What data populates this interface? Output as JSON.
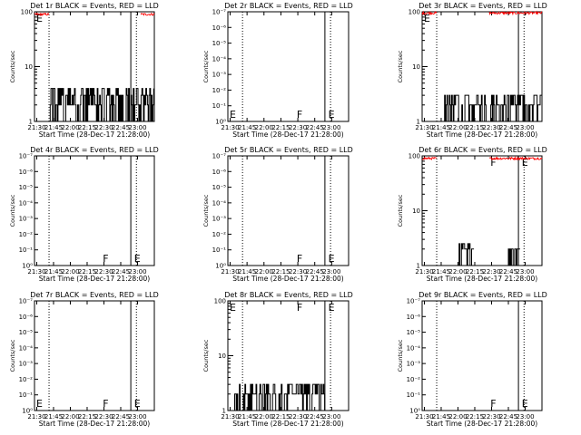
{
  "figure": {
    "xlabel": "Start Time (28-Dec-17 21:28:00)",
    "ylabel": "Counts/sec",
    "x_ticks": [
      "21:30",
      "21:45",
      "22:00",
      "22:15",
      "22:30",
      "22:45",
      "23:00"
    ],
    "x_tick_minutes": [
      2,
      17,
      32,
      47,
      62,
      77,
      92
    ],
    "x_range_minutes": [
      0,
      107
    ],
    "dotted_lines_minutes": [
      13,
      91
    ],
    "solid_line_minutes": 86,
    "flag_labels": {
      "F": 61,
      "E": 89
    }
  },
  "colors": {
    "events": "#000000",
    "lld": "#ff0000",
    "axis": "#000000"
  },
  "chart_data": [
    {
      "type": "line",
      "title": "Det 1r BLACK = Events, RED = LLD",
      "scale": "log",
      "ylim": [
        1,
        100
      ],
      "yticks": [
        "1",
        "10",
        "100"
      ],
      "ytick_values": [
        1,
        10,
        100
      ],
      "flags": [
        "E"
      ],
      "series": [
        {
          "name": "Events",
          "color": "#000000",
          "segments": [
            {
              "from": 14,
              "to": 107,
              "level_low": 1,
              "level_high": 4
            }
          ]
        },
        {
          "name": "LLD",
          "color": "#ff0000",
          "segments": [
            {
              "from": 0,
              "to": 13,
              "level": 90
            },
            {
              "from": 95,
              "to": 107,
              "level": 90
            }
          ]
        }
      ]
    },
    {
      "type": "line",
      "title": "Det 2r BLACK = Events, RED = LLD",
      "scale": "log",
      "ylim": [
        1,
        1.00000001
      ],
      "yticks": [
        "10⁰",
        "10⁻¹",
        "10⁻²",
        "10⁻³",
        "10⁻⁴",
        "10⁻⁵",
        "10⁻⁶",
        "10⁻⁷"
      ],
      "flags": [
        "E",
        "F",
        "E"
      ],
      "series": []
    },
    {
      "type": "line",
      "title": "Det 3r BLACK = Events, RED = LLD",
      "scale": "log",
      "ylim": [
        1,
        100
      ],
      "yticks": [
        "1",
        "10",
        "100"
      ],
      "ytick_values": [
        1,
        10,
        100
      ],
      "flags": [
        "E"
      ],
      "series": [
        {
          "name": "Events",
          "color": "#000000",
          "segments": [
            {
              "from": 20,
              "to": 107,
              "level_low": 1,
              "level_high": 3
            }
          ]
        },
        {
          "name": "LLD",
          "color": "#ff0000",
          "segments": [
            {
              "from": 0,
              "to": 13,
              "level": 95
            },
            {
              "from": 60,
              "to": 107,
              "level": 95
            }
          ]
        }
      ]
    },
    {
      "type": "line",
      "title": "Det 4r BLACK = Events, RED = LLD",
      "scale": "log",
      "ylim": [
        1,
        1.00000001
      ],
      "yticks": [
        "10⁰",
        "10⁻¹",
        "10⁻²",
        "10⁻³",
        "10⁻⁴",
        "10⁻⁵",
        "10⁻⁶",
        "10⁻⁷"
      ],
      "flags": [
        "F",
        "E"
      ],
      "series": []
    },
    {
      "type": "line",
      "title": "Det 5r BLACK = Events, RED = LLD",
      "scale": "log",
      "ylim": [
        1,
        1.00000001
      ],
      "yticks": [
        "10⁰",
        "10⁻¹",
        "10⁻²",
        "10⁻³",
        "10⁻⁴",
        "10⁻⁵",
        "10⁻⁶",
        "10⁻⁷"
      ],
      "flags": [
        "F",
        "E"
      ],
      "series": []
    },
    {
      "type": "line",
      "title": "Det 6r BLACK = Events, RED = LLD",
      "scale": "log",
      "ylim": [
        1,
        100
      ],
      "yticks": [
        "1",
        "10",
        "100"
      ],
      "ytick_values": [
        1,
        10,
        100
      ],
      "flags": [
        "F",
        "E"
      ],
      "series": [
        {
          "name": "Events",
          "color": "#000000",
          "segments": [
            {
              "from": 33,
              "to": 47,
              "level_low": 1,
              "level_high": 2.5
            },
            {
              "from": 77,
              "to": 88,
              "level_low": 1,
              "level_high": 2
            }
          ]
        },
        {
          "name": "LLD",
          "color": "#ff0000",
          "segments": [
            {
              "from": 0,
              "to": 13,
              "level": 90
            },
            {
              "from": 60,
              "to": 107,
              "level": 90
            }
          ]
        }
      ]
    },
    {
      "type": "line",
      "title": "Det 7r BLACK = Events, RED = LLD",
      "scale": "log",
      "ylim": [
        1,
        1.00000001
      ],
      "yticks": [
        "10⁰",
        "10⁻¹",
        "10⁻²",
        "10⁻³",
        "10⁻⁴",
        "10⁻⁵",
        "10⁻⁶",
        "10⁻⁷"
      ],
      "flags": [
        "E",
        "F",
        "E"
      ],
      "series": []
    },
    {
      "type": "line",
      "title": "Det 8r BLACK = Events, RED = LLD",
      "scale": "log",
      "ylim": [
        1,
        100
      ],
      "yticks": [
        "1",
        "10",
        "100"
      ],
      "ytick_values": [
        1,
        10,
        100
      ],
      "flags": [
        "E",
        "F",
        "E"
      ],
      "series": [
        {
          "name": "Events",
          "color": "#000000",
          "segments": [
            {
              "from": 6,
              "to": 87,
              "level_low": 1,
              "level_high": 3
            }
          ]
        }
      ]
    },
    {
      "type": "line",
      "title": "Det 9r BLACK = Events, RED = LLD",
      "scale": "log",
      "ylim": [
        1,
        1.00000001
      ],
      "yticks": [
        "10⁰",
        "10⁻¹",
        "10⁻²",
        "10⁻³",
        "10⁻⁴",
        "10⁻⁵",
        "10⁻⁶",
        "10⁻⁷"
      ],
      "flags": [
        "F",
        "E"
      ],
      "series": []
    }
  ]
}
